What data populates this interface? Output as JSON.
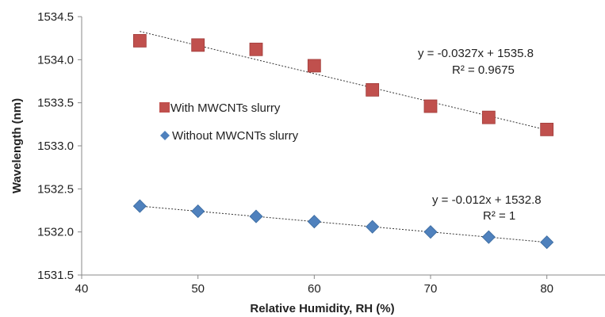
{
  "chart_data": {
    "type": "scatter",
    "xlabel": "Relative Humidity, RH (%)",
    "ylabel": "Wavelength (nm)",
    "xlim": [
      40,
      85
    ],
    "ylim": [
      1531.5,
      1534.5
    ],
    "x_ticks": [
      "40",
      "50",
      "60",
      "70",
      "80"
    ],
    "y_ticks": [
      "1531.5",
      "1532.0",
      "1532.5",
      "1533.0",
      "1533.5",
      "1534.0",
      "1534.5"
    ],
    "grid": false,
    "legend_position": "center-left",
    "series": [
      {
        "name": "With MWCNTs slurry",
        "marker": "square",
        "color": "#C0504D",
        "x": [
          45,
          50,
          55,
          60,
          65,
          70,
          75,
          80
        ],
        "y": [
          1534.22,
          1534.17,
          1534.12,
          1533.93,
          1533.65,
          1533.46,
          1533.33,
          1533.19
        ],
        "trendline": {
          "slope": -0.0327,
          "intercept": 1535.8,
          "equation": "y = -0.0327x + 1535.8",
          "r2": "R² = 0.9675"
        }
      },
      {
        "name": "Without MWCNTs slurry",
        "marker": "diamond",
        "color": "#4F81BD",
        "x": [
          45,
          50,
          55,
          60,
          65,
          70,
          75,
          80
        ],
        "y": [
          1532.3,
          1532.24,
          1532.18,
          1532.12,
          1532.06,
          1532.0,
          1531.94,
          1531.88
        ],
        "trendline": {
          "slope": -0.012,
          "intercept": 1532.84,
          "equation": "y = -0.012x + 1532.8",
          "r2": "R² = 1"
        }
      }
    ]
  }
}
